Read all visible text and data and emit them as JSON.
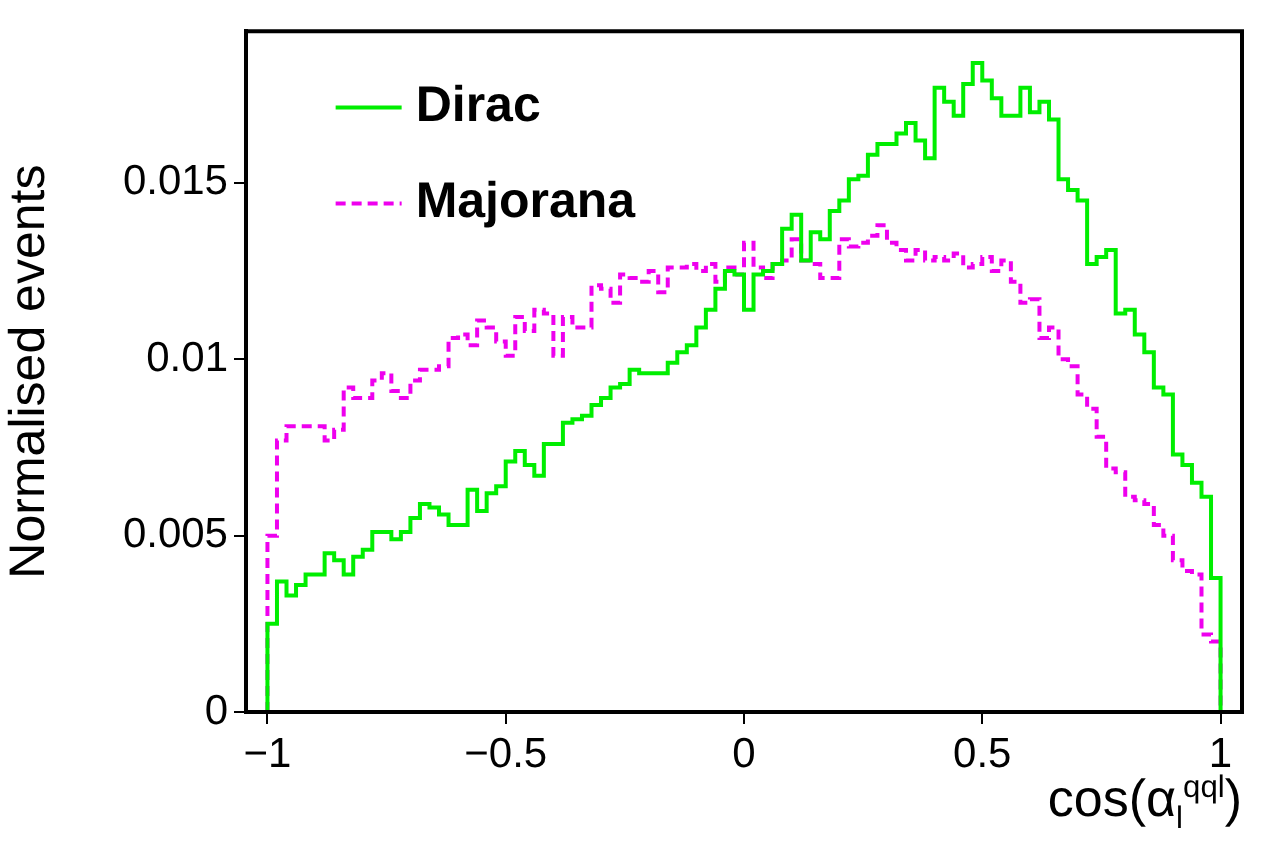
{
  "chart_data": {
    "type": "histogram",
    "xlabel": "cos(α$_{l}$$^{qql}$)",
    "ylabel": "Normalised events",
    "bins": [
      -1,
      -0.98,
      -0.96,
      -0.94,
      -0.92,
      -0.9,
      -0.88,
      -0.86,
      -0.84,
      -0.82,
      -0.8,
      -0.78,
      -0.76,
      -0.74,
      -0.72,
      -0.7,
      -0.68,
      -0.66,
      -0.64,
      -0.62,
      -0.6,
      -0.58,
      -0.56,
      -0.54,
      -0.52,
      -0.5,
      -0.48,
      -0.46,
      -0.44,
      -0.42,
      -0.4,
      -0.38,
      -0.36,
      -0.34,
      -0.32,
      -0.3,
      -0.28,
      -0.26,
      -0.24,
      -0.22,
      -0.2,
      -0.18,
      -0.16,
      -0.14,
      -0.12,
      -0.1,
      -0.08,
      -0.06,
      -0.04,
      -0.02,
      0,
      0.02,
      0.04,
      0.06,
      0.08,
      0.1,
      0.12,
      0.14,
      0.16,
      0.18,
      0.2,
      0.22,
      0.24,
      0.26,
      0.28,
      0.3,
      0.32,
      0.34,
      0.36,
      0.38,
      0.4,
      0.42,
      0.44,
      0.46,
      0.48,
      0.5,
      0.52,
      0.54,
      0.56,
      0.58,
      0.6,
      0.62,
      0.64,
      0.66,
      0.68,
      0.7,
      0.72,
      0.74,
      0.76,
      0.78,
      0.8,
      0.82,
      0.84,
      0.86,
      0.88,
      0.9,
      0.92,
      0.94,
      0.96,
      0.98,
      1
    ],
    "series": [
      {
        "name": "Dirac",
        "color": "#00ee00",
        "line_style": "solid",
        "values": [
          0.0025,
          0.0037,
          0.0033,
          0.0036,
          0.0039,
          0.0039,
          0.0045,
          0.0043,
          0.0039,
          0.0044,
          0.0046,
          0.0051,
          0.0051,
          0.0049,
          0.0051,
          0.0055,
          0.0059,
          0.0058,
          0.0056,
          0.0053,
          0.0053,
          0.0063,
          0.0057,
          0.0062,
          0.0064,
          0.0071,
          0.0074,
          0.007,
          0.0067,
          0.0076,
          0.0076,
          0.0082,
          0.0083,
          0.0084,
          0.0087,
          0.0089,
          0.0092,
          0.0093,
          0.0097,
          0.0096,
          0.0096,
          0.0096,
          0.0099,
          0.0102,
          0.0104,
          0.0109,
          0.0114,
          0.012,
          0.0125,
          0.0124,
          0.0114,
          0.0124,
          0.0125,
          0.0127,
          0.0137,
          0.0141,
          0.0128,
          0.0136,
          0.0134,
          0.0142,
          0.0145,
          0.0151,
          0.0152,
          0.0158,
          0.0161,
          0.0161,
          0.0164,
          0.0167,
          0.0162,
          0.0157,
          0.0177,
          0.0173,
          0.0169,
          0.0178,
          0.0184,
          0.0179,
          0.0174,
          0.0169,
          0.0169,
          0.0177,
          0.017,
          0.0173,
          0.0168,
          0.0151,
          0.0148,
          0.0145,
          0.0127,
          0.0129,
          0.0131,
          0.0113,
          0.0114,
          0.0107,
          0.0102,
          0.0092,
          0.009,
          0.0073,
          0.007,
          0.0065,
          0.0061,
          0.0038
        ]
      },
      {
        "name": "Majorana",
        "color": "#ee00ee",
        "line_style": "dashed",
        "values": [
          0.005,
          0.0077,
          0.0081,
          0.0081,
          0.0081,
          0.0081,
          0.0077,
          0.008,
          0.0092,
          0.0089,
          0.0089,
          0.0094,
          0.0096,
          0.0091,
          0.0089,
          0.0094,
          0.0097,
          0.0097,
          0.0098,
          0.0106,
          0.0107,
          0.0104,
          0.0111,
          0.0109,
          0.0105,
          0.0101,
          0.0112,
          0.0108,
          0.0114,
          0.0113,
          0.0101,
          0.0112,
          0.0109,
          0.0109,
          0.0121,
          0.012,
          0.0116,
          0.0124,
          0.0123,
          0.0122,
          0.0125,
          0.0119,
          0.0126,
          0.0126,
          0.0127,
          0.0125,
          0.0127,
          0.0122,
          0.0126,
          0.0124,
          0.0133,
          0.0126,
          0.0123,
          0.0127,
          0.0128,
          0.0134,
          0.0128,
          0.0127,
          0.0123,
          0.0123,
          0.0134,
          0.0132,
          0.0133,
          0.0135,
          0.0138,
          0.0133,
          0.0131,
          0.0128,
          0.0131,
          0.0128,
          0.0129,
          0.0128,
          0.013,
          0.0126,
          0.0127,
          0.0129,
          0.0125,
          0.0128,
          0.0122,
          0.0116,
          0.0117,
          0.0106,
          0.0109,
          0.01,
          0.0098,
          0.009,
          0.0086,
          0.0078,
          0.0069,
          0.0068,
          0.0061,
          0.006,
          0.0059,
          0.0053,
          0.005,
          0.0043,
          0.004,
          0.0039,
          0.0022,
          0.002
        ]
      }
    ],
    "xlim": [
      -1.045,
      1.045
    ],
    "xticks": [
      {
        "value": -1,
        "label": "−1"
      },
      {
        "value": -0.5,
        "label": "−0.5"
      },
      0,
      0.5,
      1
    ],
    "ylim": [
      0,
      0.0193
    ],
    "yticks": [
      0,
      0.005,
      0.01,
      0.015
    ],
    "legend": "top left",
    "grid": false
  }
}
